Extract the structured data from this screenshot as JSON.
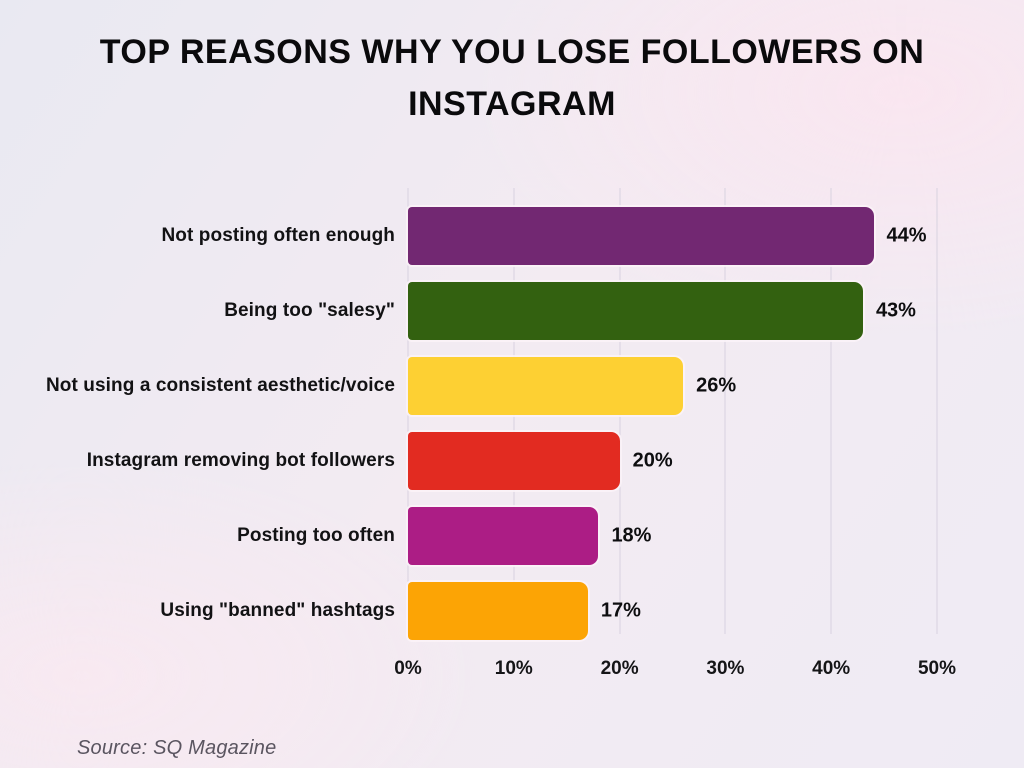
{
  "header": {
    "title_lines": [
      "TOP REASONS WHY YOU LOSE FOLLOWERS ON",
      "INSTAGRAM"
    ]
  },
  "chart_data": {
    "type": "bar",
    "orientation": "horizontal",
    "title": "TOP REASONS WHY YOU LOSE FOLLOWERS ON INSTAGRAM",
    "categories": [
      "Not posting often enough",
      "Being too \"salesy\"",
      "Not using a consistent aesthetic/voice",
      "Instagram removing bot followers",
      "Posting too often",
      "Using \"banned\" hashtags"
    ],
    "values": [
      44,
      43,
      26,
      20,
      18,
      17
    ],
    "unit": "%",
    "colors": [
      "#722872",
      "#336110",
      "#FDD033",
      "#E22B21",
      "#AC1D85",
      "#FCA405"
    ],
    "xlim": [
      0,
      50
    ],
    "x_ticks": [
      "0%",
      "10%",
      "20%",
      "30%",
      "40%",
      "50%"
    ],
    "xlabel": "",
    "ylabel": "",
    "grid": "vertical-only",
    "legend": "none",
    "value_labels": "outside-end"
  },
  "footer": {
    "source": "Source: SQ Magazine"
  }
}
